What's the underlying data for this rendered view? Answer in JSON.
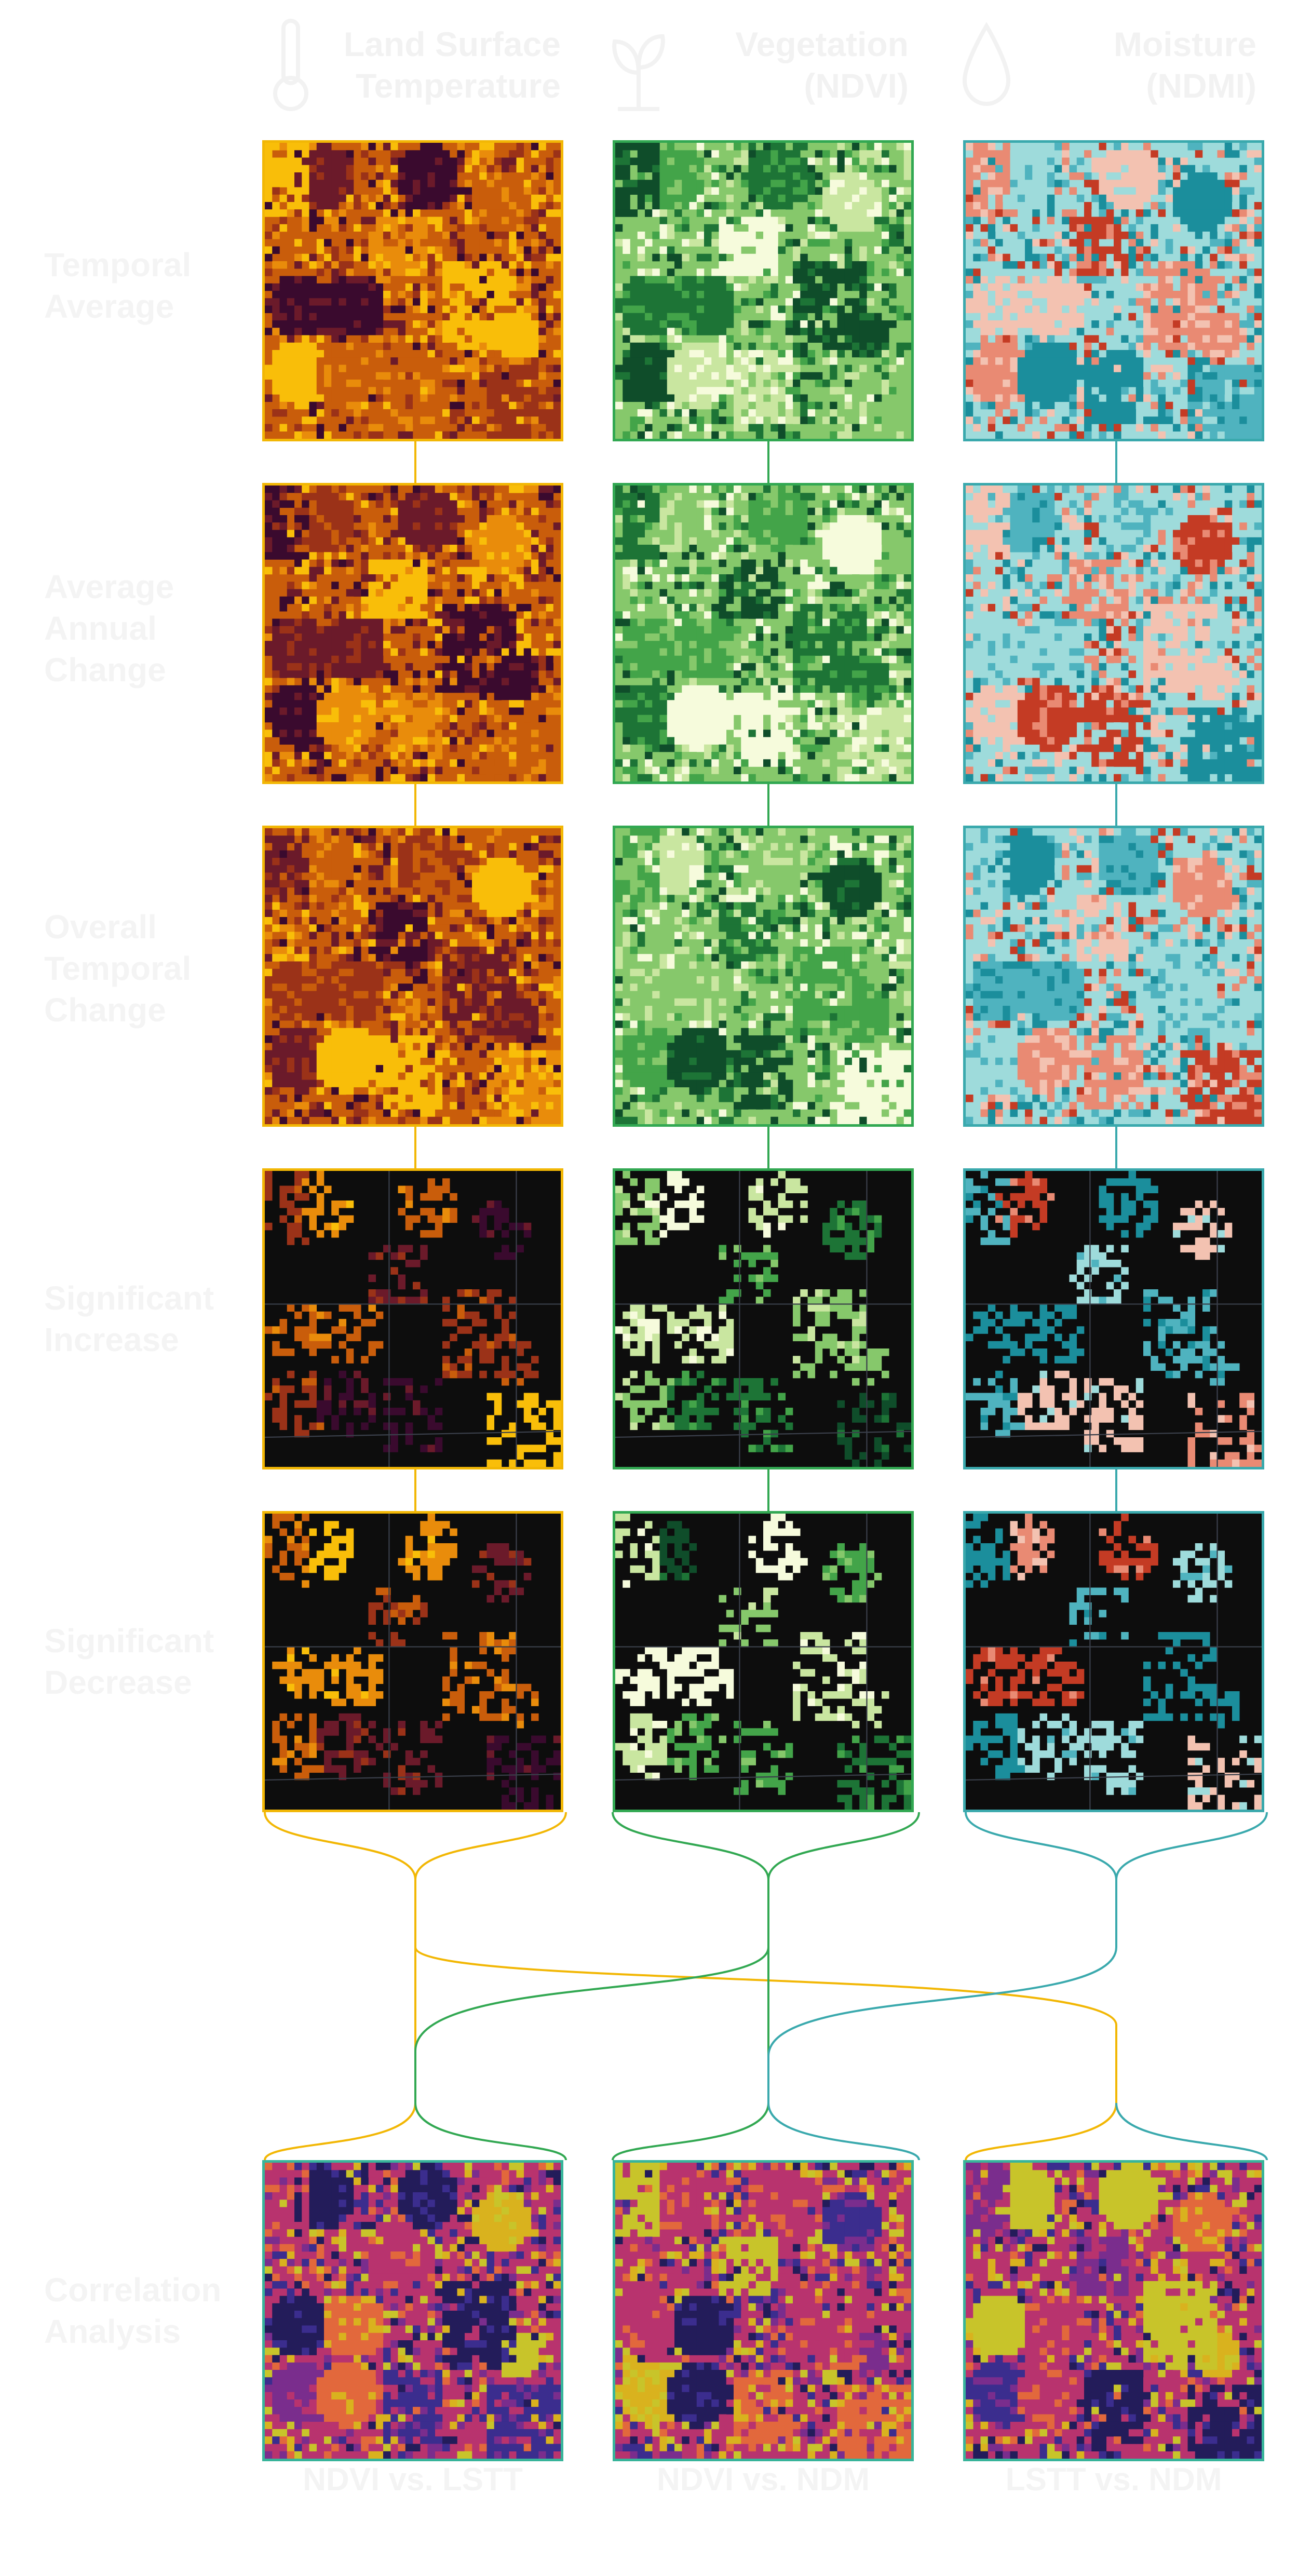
{
  "columns": [
    {
      "title_line1": "Land Surface",
      "title_line2": "Temperature",
      "icon": "thermometer-icon",
      "color": "#f2b705"
    },
    {
      "title_line1": "Vegetation",
      "title_line2": "(NDVI)",
      "icon": "plant-icon",
      "color": "#32a852"
    },
    {
      "title_line1": "Moisture",
      "title_line2": "(NDMI)",
      "icon": "droplet-icon",
      "color": "#3aa9ad"
    }
  ],
  "rows": [
    {
      "line1": "Temporal",
      "line2": "Average"
    },
    {
      "line1": "Average",
      "line2": "Annual",
      "line3": "Change"
    },
    {
      "line1": "Overall",
      "line2": "Temporal",
      "line3": "Change"
    },
    {
      "line1": "Significant",
      "line2": "Increase"
    },
    {
      "line1": "Significant",
      "line2": "Decrease"
    }
  ],
  "correlation": {
    "line1": "Correlation",
    "line2": "Analysis",
    "labels": [
      "NDVI vs. LSTT",
      "NDVI vs. NDM",
      "LSTT vs. NDM"
    ]
  },
  "palettes": {
    "lst": [
      "#3a0a2e",
      "#6b1a2a",
      "#9b3218",
      "#c95d0b",
      "#e98c0b",
      "#f9be09"
    ],
    "veg": [
      "#0f4d2a",
      "#1d7436",
      "#43a449",
      "#86c86b",
      "#c9e6a0",
      "#f6fbdc"
    ],
    "moist": [
      "#c43b24",
      "#e98a73",
      "#f3c2b1",
      "#9edbdb",
      "#4fb3bf",
      "#1b8e9c"
    ],
    "corr": [
      "#231c5a",
      "#3b2d8e",
      "#7a2d8d",
      "#b8336e",
      "#e2683c",
      "#d9b21e",
      "#c8c42a"
    ],
    "dark": "#0d0d0d"
  }
}
